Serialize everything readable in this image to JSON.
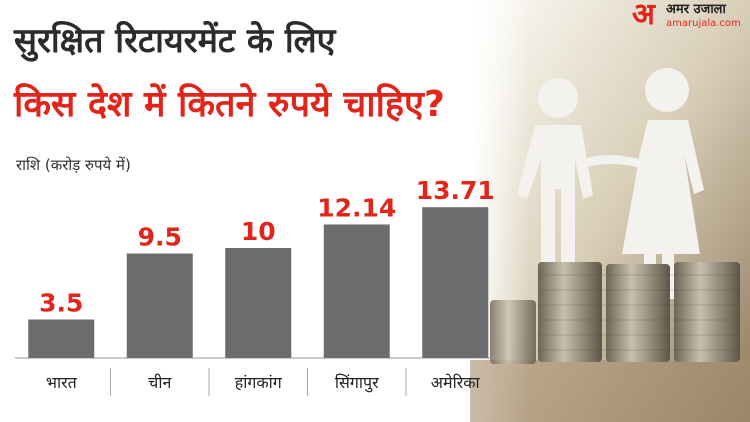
{
  "chart_data": {
    "type": "bar",
    "title": "सुरक्षित रिटायरमेंट के लिए",
    "subtitle": "किस देश में कितने रुपये चाहिए?",
    "y_label": "राशि (करोड़ रुपये में)",
    "categories": [
      "भारत",
      "चीन",
      "हांगकांग",
      "सिंगापुर",
      "अमेरिका"
    ],
    "values": [
      3.5,
      9.5,
      10,
      12.14,
      13.71
    ],
    "color": "#6b6c6e",
    "label_color": "#e1251b",
    "ylim": [
      0,
      14
    ]
  },
  "logo": {
    "mark": "अ",
    "name": "अमर उजाला",
    "site": "amarujala.com"
  }
}
